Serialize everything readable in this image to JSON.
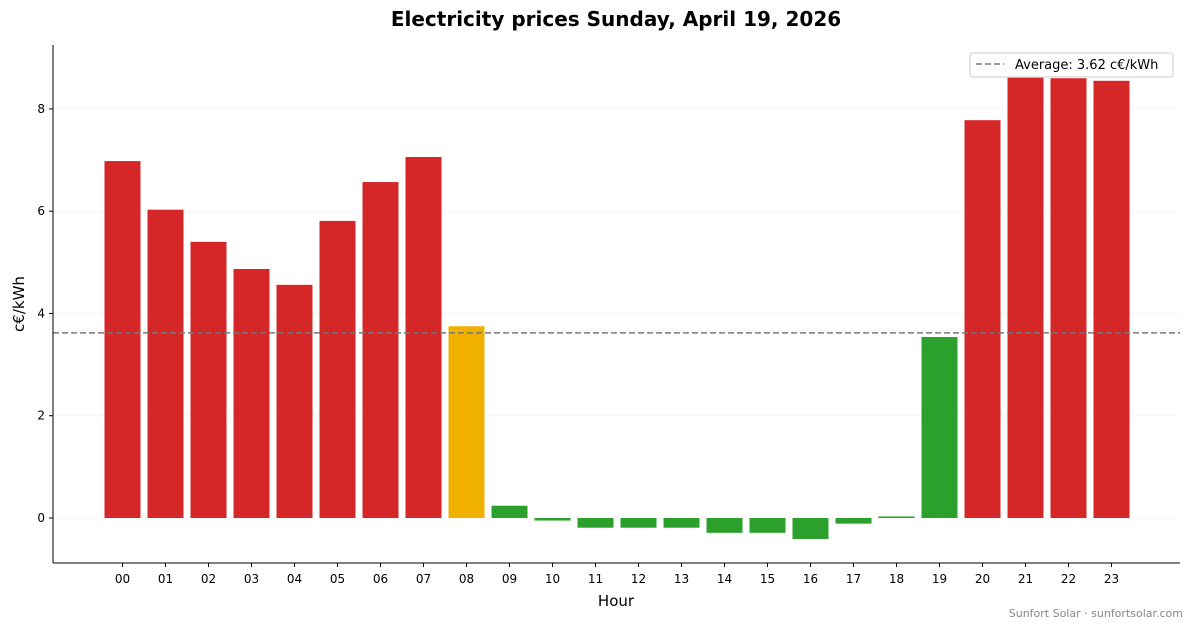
{
  "chart_data": {
    "type": "bar",
    "title": "Electricity prices Sunday, April 19, 2026",
    "xlabel": "Hour",
    "ylabel": "c€/kWh",
    "categories": [
      "00",
      "01",
      "02",
      "03",
      "04",
      "05",
      "06",
      "07",
      "08",
      "09",
      "10",
      "11",
      "12",
      "13",
      "14",
      "15",
      "16",
      "17",
      "18",
      "19",
      "20",
      "21",
      "22",
      "23"
    ],
    "values": [
      6.98,
      6.03,
      5.4,
      4.87,
      4.56,
      5.81,
      6.57,
      7.06,
      3.75,
      0.24,
      -0.05,
      -0.19,
      -0.19,
      -0.19,
      -0.29,
      -0.29,
      -0.41,
      -0.11,
      0.03,
      3.54,
      7.78,
      8.61,
      8.6,
      8.55
    ],
    "bar_levels": [
      "high",
      "high",
      "high",
      "high",
      "high",
      "high",
      "high",
      "high",
      "mid",
      "low",
      "low",
      "low",
      "low",
      "low",
      "low",
      "low",
      "low",
      "low",
      "low",
      "low",
      "high",
      "high",
      "high",
      "high"
    ],
    "colors": {
      "high": "#d62728",
      "mid": "#f0b000",
      "low": "#2ca02c",
      "average_line": "#777777"
    },
    "average": 3.62,
    "legend": {
      "label": "Average: 3.62 c€/kWh",
      "location": "top-right"
    },
    "yticks": [
      0,
      2,
      4,
      6,
      8
    ],
    "ytick_labels": [
      "0",
      "2",
      "4",
      "6",
      "8"
    ],
    "ylim": [
      -0.88,
      9.25
    ],
    "grid": "horizontal dotted",
    "credit": "Sunfort Solar · sunfortsolar.com"
  }
}
